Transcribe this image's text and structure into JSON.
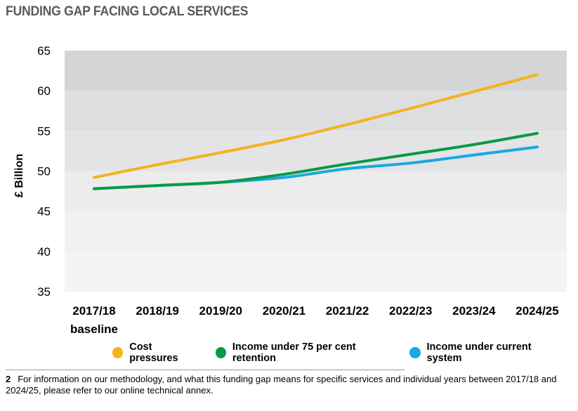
{
  "title": "FUNDING GAP FACING LOCAL SERVICES",
  "chart_data": {
    "type": "line",
    "ylabel": "£ Billion",
    "ylim": [
      35,
      65
    ],
    "yticks": [
      35,
      40,
      45,
      50,
      55,
      60,
      65
    ],
    "categories": [
      "2017/18",
      "2018/19",
      "2019/20",
      "2020/21",
      "2021/22",
      "2022/23",
      "2023/24",
      "2024/25"
    ],
    "category_sublabels": [
      "baseline",
      "",
      "",
      "",
      "",
      "",
      "",
      ""
    ],
    "series": [
      {
        "name": "Cost pressures",
        "color": "#f5b21f",
        "values": [
          49.2,
          50.8,
          52.3,
          53.9,
          55.8,
          57.8,
          59.9,
          62.0
        ]
      },
      {
        "name": "Income under 75 per cent retention",
        "color": "#0a9a45",
        "values": [
          47.8,
          48.2,
          48.6,
          49.6,
          50.9,
          52.1,
          53.3,
          54.7
        ]
      },
      {
        "name": "Income under current system",
        "color": "#17a9e1",
        "values": [
          47.8,
          48.2,
          48.6,
          49.2,
          50.3,
          51.0,
          52.0,
          53.0
        ]
      }
    ],
    "background_bands": [
      "#d4d5d7",
      "#dddee0",
      "#e4e4e6",
      "#ececed",
      "#f1f1f2",
      "#f4f4f5"
    ],
    "grid": false,
    "legend_position": "bottom"
  },
  "footnote": {
    "number": "2",
    "text": "For information on our methodology, and what this funding gap means for specific services and individual years between 2017/18 and 2024/25, please refer to our online technical annex."
  }
}
